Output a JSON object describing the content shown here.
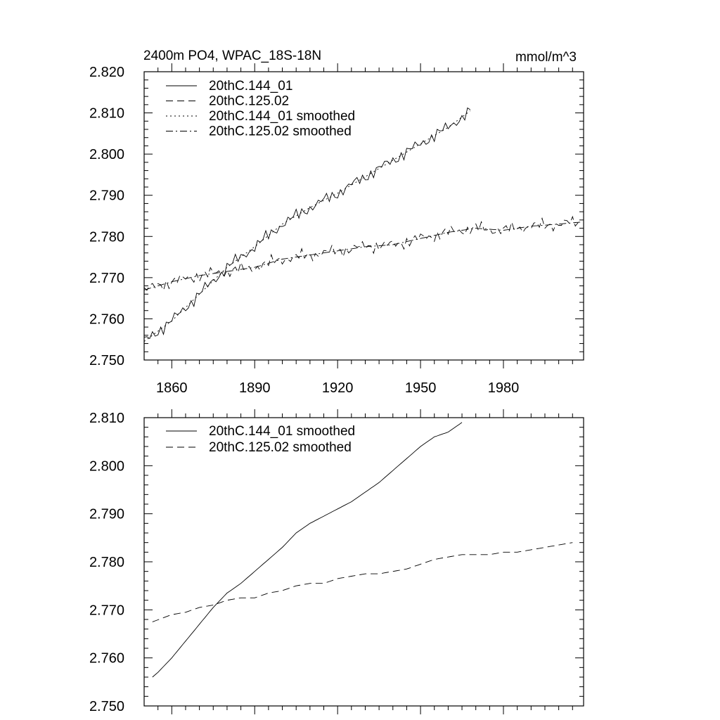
{
  "chart_data": [
    {
      "type": "line",
      "title": "2400m PO4, WPAC_18S-18N",
      "units": "mmol/m^3",
      "xlabel": "",
      "ylabel": "",
      "xlim": [
        1850,
        2009
      ],
      "ylim": [
        2.75,
        2.82
      ],
      "xticks": [
        1860,
        1890,
        1920,
        1950,
        1980
      ],
      "xtick_labels": [
        "1860",
        "1890",
        "1920",
        "1950",
        "1980"
      ],
      "yticks": [
        2.75,
        2.76,
        2.77,
        2.78,
        2.79,
        2.8,
        2.81,
        2.82
      ],
      "ytick_labels": [
        "2.750",
        "2.760",
        "2.770",
        "2.780",
        "2.790",
        "2.800",
        "2.810",
        "2.820"
      ],
      "legend_position": "top-left",
      "series": [
        {
          "name": "20thC.144_01",
          "dash": "solid",
          "noisy": true,
          "x": [
            1850,
            1860,
            1870,
            1880,
            1890,
            1900,
            1910,
            1920,
            1930,
            1940,
            1950,
            1960,
            1968
          ],
          "y": [
            2.7545,
            2.7595,
            2.766,
            2.7725,
            2.7775,
            2.783,
            2.787,
            2.7905,
            2.7945,
            2.7985,
            2.8025,
            2.8065,
            2.8105
          ]
        },
        {
          "name": "20thC.125.02",
          "dash": "dashed",
          "noisy": true,
          "x": [
            1850,
            1860,
            1870,
            1880,
            1890,
            1900,
            1910,
            1920,
            1930,
            1940,
            1950,
            1960,
            1970,
            1980,
            1990,
            2000,
            2008
          ],
          "y": [
            2.767,
            2.769,
            2.7705,
            2.7715,
            2.7725,
            2.7745,
            2.7755,
            2.7765,
            2.7775,
            2.778,
            2.7795,
            2.781,
            2.782,
            2.7815,
            2.7825,
            2.783,
            2.7835
          ]
        },
        {
          "name": "20thC.144_01 smoothed",
          "dash": "dotted",
          "noisy": false,
          "x": [
            1850,
            1860,
            1870,
            1880,
            1890,
            1900,
            1910,
            1920,
            1930,
            1940,
            1950,
            1960,
            1968
          ],
          "y": [
            2.7545,
            2.7595,
            2.766,
            2.7725,
            2.7775,
            2.783,
            2.787,
            2.7905,
            2.7945,
            2.7985,
            2.8025,
            2.8065,
            2.8105
          ]
        },
        {
          "name": "20thC.125.02 smoothed",
          "dash": "dashdot",
          "noisy": false,
          "x": [
            1850,
            1860,
            1870,
            1880,
            1890,
            1900,
            1910,
            1920,
            1930,
            1940,
            1950,
            1960,
            1970,
            1980,
            1990,
            2000,
            2008
          ],
          "y": [
            2.767,
            2.769,
            2.7705,
            2.7715,
            2.7725,
            2.7745,
            2.7755,
            2.7765,
            2.7775,
            2.778,
            2.7795,
            2.781,
            2.782,
            2.7815,
            2.7825,
            2.783,
            2.7835
          ]
        }
      ]
    },
    {
      "type": "line",
      "title": "",
      "xlabel": "",
      "ylabel": "",
      "xlim": [
        1850,
        2009
      ],
      "ylim": [
        2.75,
        2.81
      ],
      "xticks": [
        1860,
        1890,
        1920,
        1950,
        1980
      ],
      "xtick_labels": [],
      "yticks": [
        2.75,
        2.76,
        2.77,
        2.78,
        2.79,
        2.8,
        2.81
      ],
      "ytick_labels": [
        "2.750",
        "2.760",
        "2.770",
        "2.780",
        "2.790",
        "2.800",
        "2.810"
      ],
      "legend_position": "top-left",
      "series": [
        {
          "name": "20thC.144_01 smoothed",
          "dash": "solid",
          "noisy": false,
          "x": [
            1853,
            1855,
            1860,
            1865,
            1870,
            1875,
            1880,
            1885,
            1890,
            1895,
            1900,
            1905,
            1910,
            1915,
            1920,
            1925,
            1930,
            1935,
            1940,
            1945,
            1950,
            1955,
            1960,
            1965
          ],
          "y": [
            2.756,
            2.757,
            2.76,
            2.7635,
            2.767,
            2.7705,
            2.7735,
            2.7755,
            2.778,
            2.7805,
            2.783,
            2.786,
            2.788,
            2.7895,
            2.791,
            2.7925,
            2.7945,
            2.7965,
            2.799,
            2.8015,
            2.804,
            2.806,
            2.807,
            2.809
          ]
        },
        {
          "name": "20thC.125.02 smoothed",
          "dash": "dashed",
          "noisy": false,
          "x": [
            1853,
            1860,
            1865,
            1870,
            1875,
            1880,
            1885,
            1890,
            1895,
            1900,
            1905,
            1910,
            1915,
            1920,
            1925,
            1930,
            1935,
            1940,
            1945,
            1950,
            1955,
            1960,
            1965,
            1970,
            1975,
            1980,
            1985,
            1990,
            1995,
            2000,
            2005
          ],
          "y": [
            2.7675,
            2.769,
            2.7695,
            2.7705,
            2.771,
            2.772,
            2.7725,
            2.7725,
            2.7735,
            2.774,
            2.775,
            2.7755,
            2.7755,
            2.7765,
            2.777,
            2.7775,
            2.7775,
            2.778,
            2.7785,
            2.7795,
            2.7805,
            2.781,
            2.7815,
            2.7815,
            2.7815,
            2.782,
            2.782,
            2.7825,
            2.783,
            2.7835,
            2.784
          ]
        }
      ]
    }
  ]
}
